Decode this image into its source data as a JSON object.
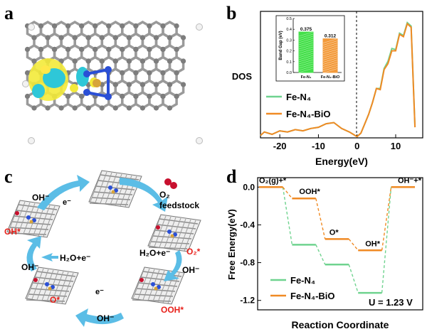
{
  "panels": {
    "a": {
      "label": "a"
    },
    "b": {
      "label": "b",
      "ylabel": "DOS",
      "xlabel": "Energy(eV)",
      "xticks": [
        "-20",
        "-10",
        "0",
        "10"
      ],
      "legend": [
        "Fe-N₄",
        "Fe-N₄-BiO"
      ],
      "inset": {
        "ylabel": "Band Gap (eV)",
        "yticks": [
          "0.0",
          "0.1",
          "0.2",
          "0.3",
          "0.4",
          "0.5"
        ],
        "categories": [
          "Fe-N₄",
          "Fe-N₄-BiO"
        ],
        "value_labels": [
          "0.375",
          "0.312"
        ]
      }
    },
    "c": {
      "label": "c",
      "texts": {
        "oh1": "OH⁻",
        "e1": "e⁻",
        "o2": "O₂",
        "feed": "feedstock",
        "h2o_e_right": "H₂O+e⁻",
        "o2_star": "O₂*",
        "oh_right": "OH⁻",
        "h2o_e_left": "H₂O+e⁻",
        "oh_star": "OH*",
        "oh_left": "OH⁻",
        "o_star": "O*",
        "e_bottom": "e⁻",
        "oh_bottom": "OH⁻",
        "ooh_star": "OOH*"
      }
    },
    "d": {
      "label": "d",
      "ylabel": "Free Energy(eV)",
      "xlabel": "Reaction Coordinate",
      "yticks": [
        "0.0",
        "-0.4",
        "-0.8",
        "-1.2"
      ],
      "step_labels": [
        "O₂(g)+*",
        "OOH*",
        "O*",
        "OH*",
        "OH⁻+*"
      ],
      "legend": [
        "Fe-N₄",
        "Fe-N₄-BiO"
      ],
      "note": "U = 1.23 V"
    }
  },
  "colors": {
    "green": "#6fd38f",
    "orange": "#f08a24",
    "blue_arrow": "#5bbde6",
    "carbon": "#8c8c8c",
    "nitrogen": "#2a4fd6",
    "o2_red": "#c8102e",
    "star_red": "#e8201a"
  },
  "chart_data": [
    {
      "type": "line",
      "xlabel": "Energy(eV)",
      "ylabel": "DOS",
      "xlim": [
        -25,
        17
      ],
      "series": [
        {
          "name": "Fe-N₄",
          "x": [
            -25,
            -24,
            -22,
            -20,
            -18,
            -16,
            -14,
            -12,
            -10,
            -8,
            -6,
            -4,
            -2,
            -1,
            0,
            1,
            2,
            3,
            4,
            5,
            6,
            7,
            8,
            9,
            10,
            11,
            12,
            13,
            14,
            15
          ],
          "y": [
            0.02,
            0.05,
            0.03,
            0.06,
            0.05,
            0.07,
            0.06,
            0.08,
            0.09,
            0.12,
            0.13,
            0.08,
            0.05,
            0.03,
            0.01,
            0.04,
            0.12,
            0.2,
            0.3,
            0.38,
            0.45,
            0.55,
            0.68,
            0.72,
            0.78,
            0.85,
            0.9,
            0.94,
            0.98,
            0.05
          ]
        },
        {
          "name": "Fe-N₄-BiO",
          "x": [
            -25,
            -24,
            -22,
            -20,
            -18,
            -16,
            -14,
            -12,
            -10,
            -8,
            -6,
            -4,
            -2,
            -1,
            0,
            1,
            2,
            3,
            4,
            5,
            6,
            7,
            8,
            9,
            10,
            11,
            12,
            13,
            14,
            15
          ],
          "y": [
            0.02,
            0.05,
            0.03,
            0.06,
            0.05,
            0.07,
            0.06,
            0.08,
            0.09,
            0.12,
            0.13,
            0.08,
            0.05,
            0.03,
            0.01,
            0.04,
            0.12,
            0.2,
            0.3,
            0.38,
            0.44,
            0.54,
            0.66,
            0.7,
            0.77,
            0.84,
            0.89,
            0.93,
            0.97,
            0.05
          ]
        }
      ]
    },
    {
      "type": "bar",
      "ylabel": "Band Gap (eV)",
      "categories": [
        "Fe-N₄",
        "Fe-N₄-BiO"
      ],
      "values": [
        0.375,
        0.312
      ],
      "ylim": [
        0,
        0.5
      ]
    },
    {
      "type": "line",
      "xlabel": "Reaction Coordinate",
      "ylabel": "Free Energy(eV)",
      "ylim": [
        -1.3,
        0.1
      ],
      "categories": [
        "O₂(g)+*",
        "OOH*",
        "O*",
        "OH*",
        "OH⁻+*"
      ],
      "series": [
        {
          "name": "Fe-N₄",
          "values": [
            0.0,
            -0.61,
            -0.82,
            -1.12,
            0.0
          ]
        },
        {
          "name": "Fe-N₄-BiO",
          "values": [
            0.0,
            -0.12,
            -0.55,
            -0.67,
            0.0
          ]
        }
      ]
    }
  ]
}
